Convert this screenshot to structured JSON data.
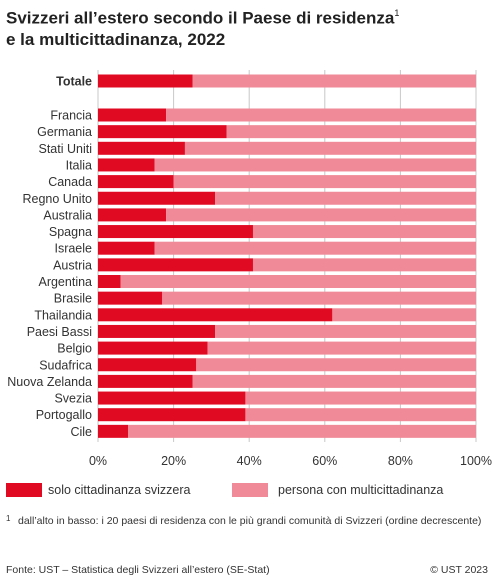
{
  "title_line1": "Svizzeri all’estero secondo il Paese di residenza",
  "title_sup": "1",
  "title_line2": "e la multicittadinanza, 2022",
  "colors": {
    "single": "#e10a23",
    "multi": "#f08a98",
    "grid": "#c8c8c8"
  },
  "chart_data": {
    "type": "bar",
    "orientation": "horizontal",
    "stacked": "percent",
    "categories": [
      "Totale",
      "Francia",
      "Germania",
      "Stati Uniti",
      "Italia",
      "Canada",
      "Regno Unito",
      "Australia",
      "Spagna",
      "Israele",
      "Austria",
      "Argentina",
      "Brasile",
      "Thailandia",
      "Paesi Bassi",
      "Belgio",
      "Sudafrica",
      "Nuova Zelanda",
      "Svezia",
      "Portogallo",
      "Cile"
    ],
    "series": [
      {
        "name": "solo cittadinanza svizzera",
        "values": [
          25,
          18,
          34,
          23,
          15,
          20,
          31,
          18,
          41,
          15,
          41,
          6,
          17,
          62,
          31,
          29,
          26,
          25,
          39,
          39,
          8
        ]
      },
      {
        "name": "persona con multicittadinanza",
        "values": [
          75,
          82,
          66,
          77,
          85,
          80,
          69,
          82,
          59,
          85,
          59,
          94,
          83,
          38,
          69,
          71,
          74,
          75,
          61,
          61,
          92
        ]
      }
    ],
    "xlim": [
      0,
      100
    ],
    "xticks": [
      "0%",
      "20%",
      "40%",
      "60%",
      "80%",
      "100%"
    ],
    "grid": true,
    "legend_position": "bottom"
  },
  "legend": {
    "single": "solo cittadinanza svizzera",
    "multi": "persona con multicittadinanza"
  },
  "footnote_mark": "1",
  "footnote": "dall’alto in basso: i 20 paesi di residenza con le più grandi comunità di Svizzeri (ordine decrescente)",
  "source": "Fonte: UST – Statistica degli Svizzeri all’estero (SE-Stat)",
  "copyright": "© UST 2023"
}
